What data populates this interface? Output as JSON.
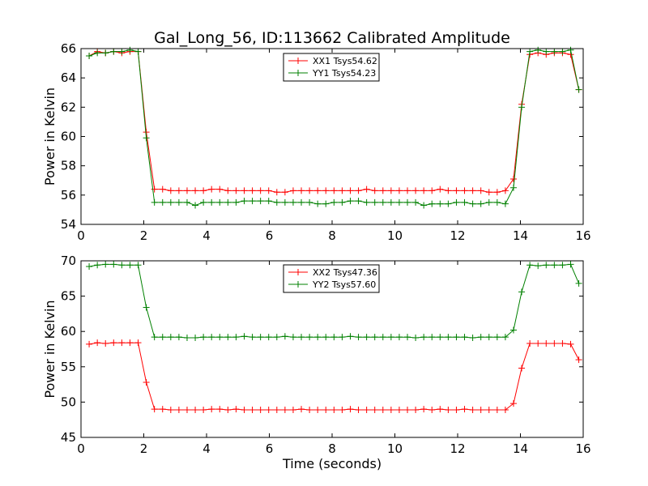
{
  "title": "Gal_Long_56, ID:113662 Calibrated Amplitude",
  "colors": {
    "red": "#ff0000",
    "green": "#008000"
  },
  "chart_data": [
    {
      "type": "line",
      "ylabel": "Power in Kelvin",
      "xlabel": "",
      "xlim": [
        0,
        16
      ],
      "ylim": [
        54,
        66
      ],
      "xticks": [
        0,
        2,
        4,
        6,
        8,
        10,
        12,
        14,
        16
      ],
      "yticks": [
        54,
        56,
        58,
        60,
        62,
        64,
        66
      ],
      "legend_position": "top-center",
      "x": [
        0.26,
        0.52,
        0.78,
        1.04,
        1.3,
        1.56,
        1.82,
        2.08,
        2.34,
        2.6,
        2.86,
        3.12,
        3.38,
        3.64,
        3.9,
        4.16,
        4.42,
        4.68,
        4.94,
        5.2,
        5.46,
        5.72,
        5.98,
        6.24,
        6.5,
        6.76,
        7.02,
        7.28,
        7.54,
        7.8,
        8.06,
        8.32,
        8.58,
        8.84,
        9.1,
        9.36,
        9.62,
        9.88,
        10.14,
        10.4,
        10.66,
        10.92,
        11.18,
        11.44,
        11.7,
        11.96,
        12.22,
        12.48,
        12.74,
        13.0,
        13.26,
        13.52,
        13.78,
        14.04,
        14.3,
        14.56,
        14.82,
        15.08,
        15.34,
        15.6,
        15.86
      ],
      "series": [
        {
          "name": "XX1 Tsys54.62",
          "color": "red",
          "values": [
            65.5,
            65.8,
            65.7,
            65.8,
            65.7,
            65.8,
            65.8,
            60.3,
            56.4,
            56.4,
            56.3,
            56.3,
            56.3,
            56.3,
            56.3,
            56.4,
            56.4,
            56.3,
            56.3,
            56.3,
            56.3,
            56.3,
            56.3,
            56.2,
            56.2,
            56.3,
            56.3,
            56.3,
            56.3,
            56.3,
            56.3,
            56.3,
            56.3,
            56.3,
            56.4,
            56.3,
            56.3,
            56.3,
            56.3,
            56.3,
            56.3,
            56.3,
            56.3,
            56.4,
            56.3,
            56.3,
            56.3,
            56.3,
            56.3,
            56.2,
            56.2,
            56.3,
            57.1,
            62.2,
            65.6,
            65.7,
            65.6,
            65.7,
            65.7,
            65.6,
            63.2
          ]
        },
        {
          "name": "YY1 Tsys54.23",
          "color": "green",
          "values": [
            65.5,
            65.7,
            65.7,
            65.8,
            65.8,
            65.9,
            65.8,
            59.9,
            55.5,
            55.5,
            55.5,
            55.5,
            55.5,
            55.3,
            55.5,
            55.5,
            55.5,
            55.5,
            55.5,
            55.6,
            55.6,
            55.6,
            55.6,
            55.5,
            55.5,
            55.5,
            55.5,
            55.5,
            55.4,
            55.4,
            55.5,
            55.5,
            55.6,
            55.6,
            55.5,
            55.5,
            55.5,
            55.5,
            55.5,
            55.5,
            55.5,
            55.3,
            55.4,
            55.4,
            55.4,
            55.5,
            55.5,
            55.4,
            55.4,
            55.5,
            55.5,
            55.4,
            56.5,
            62.0,
            65.8,
            65.9,
            65.8,
            65.8,
            65.8,
            65.9,
            63.2
          ]
        }
      ]
    },
    {
      "type": "line",
      "ylabel": "Power in Kelvin",
      "xlabel": "Time (seconds)",
      "xlim": [
        0,
        16
      ],
      "ylim": [
        45,
        70
      ],
      "xticks": [
        0,
        2,
        4,
        6,
        8,
        10,
        12,
        14,
        16
      ],
      "yticks": [
        45,
        50,
        55,
        60,
        65,
        70
      ],
      "legend_position": "top-center",
      "x": [
        0.26,
        0.52,
        0.78,
        1.04,
        1.3,
        1.56,
        1.82,
        2.08,
        2.34,
        2.6,
        2.86,
        3.12,
        3.38,
        3.64,
        3.9,
        4.16,
        4.42,
        4.68,
        4.94,
        5.2,
        5.46,
        5.72,
        5.98,
        6.24,
        6.5,
        6.76,
        7.02,
        7.28,
        7.54,
        7.8,
        8.06,
        8.32,
        8.58,
        8.84,
        9.1,
        9.36,
        9.62,
        9.88,
        10.14,
        10.4,
        10.66,
        10.92,
        11.18,
        11.44,
        11.7,
        11.96,
        12.22,
        12.48,
        12.74,
        13.0,
        13.26,
        13.52,
        13.78,
        14.04,
        14.3,
        14.56,
        14.82,
        15.08,
        15.34,
        15.6,
        15.86
      ],
      "series": [
        {
          "name": "XX2 Tsys47.36",
          "color": "red",
          "values": [
            58.2,
            58.4,
            58.3,
            58.4,
            58.4,
            58.4,
            58.4,
            52.8,
            49.0,
            49.0,
            48.9,
            48.9,
            48.9,
            48.9,
            48.9,
            49.0,
            49.0,
            48.9,
            49.0,
            48.9,
            48.9,
            48.9,
            48.9,
            48.9,
            48.9,
            48.9,
            49.0,
            48.9,
            48.9,
            48.9,
            48.9,
            48.9,
            49.0,
            48.9,
            48.9,
            48.9,
            48.9,
            48.9,
            48.9,
            48.9,
            48.9,
            49.0,
            48.9,
            49.0,
            48.9,
            48.9,
            49.0,
            48.9,
            48.9,
            48.9,
            48.9,
            48.9,
            49.8,
            54.8,
            58.3,
            58.3,
            58.3,
            58.3,
            58.3,
            58.2,
            56.0
          ]
        },
        {
          "name": "YY2 Tsys57.60",
          "color": "green",
          "values": [
            69.2,
            69.4,
            69.5,
            69.5,
            69.4,
            69.4,
            69.4,
            63.4,
            59.2,
            59.2,
            59.2,
            59.2,
            59.1,
            59.1,
            59.2,
            59.2,
            59.2,
            59.2,
            59.2,
            59.3,
            59.2,
            59.2,
            59.2,
            59.2,
            59.3,
            59.2,
            59.2,
            59.2,
            59.2,
            59.2,
            59.2,
            59.2,
            59.3,
            59.2,
            59.2,
            59.2,
            59.2,
            59.2,
            59.2,
            59.2,
            59.1,
            59.2,
            59.2,
            59.2,
            59.2,
            59.2,
            59.2,
            59.1,
            59.2,
            59.2,
            59.2,
            59.2,
            60.2,
            65.6,
            69.4,
            69.3,
            69.4,
            69.4,
            69.4,
            69.5,
            66.8
          ]
        }
      ]
    }
  ]
}
